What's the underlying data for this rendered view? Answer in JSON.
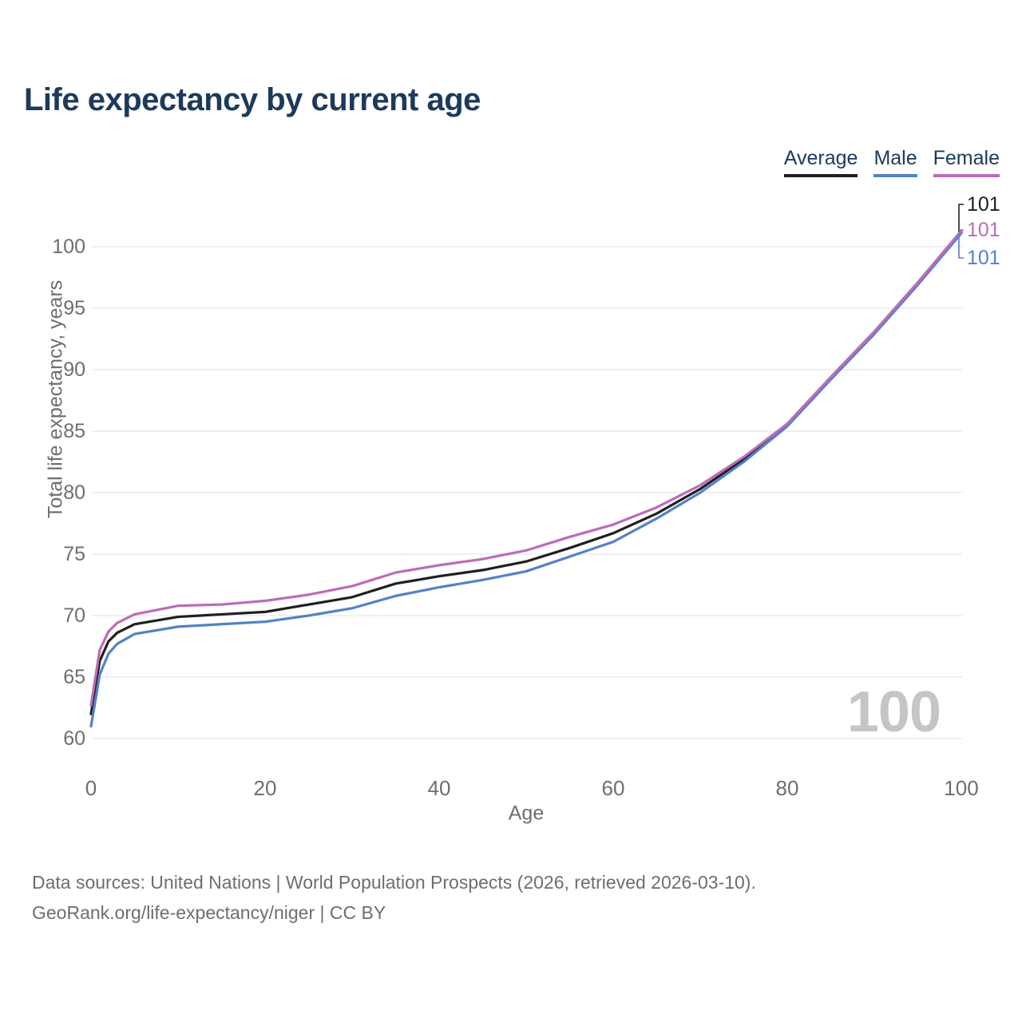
{
  "header": {
    "title": "Life expectancy by current age"
  },
  "legend": {
    "items": [
      {
        "label": "Average",
        "color": "#1f1f1f"
      },
      {
        "label": "Male",
        "color": "#5282c8"
      },
      {
        "label": "Female",
        "color": "#bc6cb8"
      }
    ]
  },
  "chart_data": {
    "type": "line",
    "title": "Life expectancy by current age",
    "xlabel": "Age",
    "ylabel": "Total life expectancy, years",
    "xlim": [
      0,
      100
    ],
    "ylim": [
      60,
      100
    ],
    "xticks": [
      0,
      20,
      40,
      60,
      80,
      100
    ],
    "yticks": [
      60,
      65,
      70,
      75,
      80,
      85,
      90,
      95,
      100
    ],
    "grid": "horizontal",
    "legend_position": "top-right",
    "watermark": "100",
    "x": [
      0,
      1,
      2,
      3,
      5,
      10,
      15,
      20,
      25,
      30,
      35,
      40,
      45,
      50,
      55,
      60,
      65,
      70,
      75,
      80,
      85,
      90,
      95,
      100
    ],
    "series": [
      {
        "name": "Average",
        "color": "#1f1f1f",
        "end_label": "101",
        "values": [
          62.0,
          66.3,
          67.9,
          68.6,
          69.3,
          69.9,
          70.1,
          70.3,
          70.9,
          71.5,
          72.6,
          73.2,
          73.7,
          74.4,
          75.5,
          76.7,
          78.3,
          80.3,
          82.7,
          85.5,
          89.3,
          93.0,
          97.0,
          101.2
        ]
      },
      {
        "name": "Male",
        "color": "#5282c8",
        "end_label": "101",
        "values": [
          61.0,
          65.2,
          66.9,
          67.7,
          68.5,
          69.1,
          69.3,
          69.5,
          70.0,
          70.6,
          71.6,
          72.3,
          72.9,
          73.6,
          74.8,
          76.0,
          77.9,
          80.0,
          82.5,
          85.4,
          89.2,
          92.9,
          96.9,
          101.1
        ]
      },
      {
        "name": "Female",
        "color": "#bc6cb8",
        "end_label": "101",
        "values": [
          62.7,
          67.2,
          68.7,
          69.4,
          70.1,
          70.8,
          70.9,
          71.2,
          71.7,
          72.4,
          73.5,
          74.1,
          74.6,
          75.3,
          76.4,
          77.4,
          78.8,
          80.6,
          82.9,
          85.6,
          89.4,
          93.1,
          97.1,
          101.3
        ]
      }
    ]
  },
  "footer": {
    "line1": "Data sources: United Nations | World Population Prospects (2026, retrieved 2026-03-10).",
    "line2": "GeoRank.org/life-expectancy/niger | CC BY"
  },
  "colors": {
    "title": "#1d3a5c",
    "axis_text": "#6e6e6e",
    "grid": "#e8e8e8",
    "watermark": "#c5c5c5",
    "background": "#ffffff"
  }
}
